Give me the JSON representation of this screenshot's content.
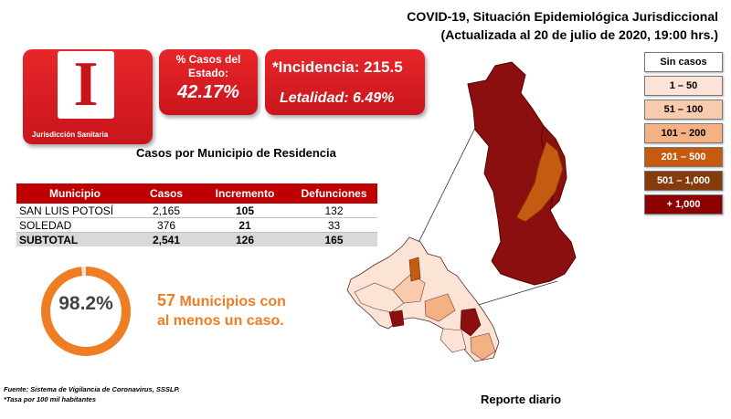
{
  "header": {
    "line1": "COVID-19, Situación Epidemiológica Jurisdiccional",
    "line2": "(Actualizada al 20 de julio de 2020, 19:00 hrs.)"
  },
  "jurisdiction": {
    "letter": "I",
    "label": "Jurisdicción Sanitaria"
  },
  "pct_card": {
    "label_line1": "% Casos del",
    "label_line2": "Estado:",
    "value": "42.17%"
  },
  "incidence_card": {
    "incidencia": "*Incidencia: 215.5",
    "letalidad": "Letalidad: 6.49%"
  },
  "table": {
    "title": "Casos por Municipio  de Residencia",
    "headers": [
      "Municipio",
      "Casos",
      "Incremento",
      "Defunciones"
    ],
    "rows": [
      [
        "SAN LUIS POTOSÍ",
        "2,165",
        "105",
        "132"
      ],
      [
        "SOLEDAD",
        "376",
        "21",
        "33"
      ]
    ],
    "subtotal": [
      "SUBTOTAL",
      "2,541",
      "126",
      "165"
    ]
  },
  "ring": {
    "value": "98.2%",
    "fraction": 0.982,
    "color": "#ee7d23"
  },
  "municipios": {
    "count": "57",
    "line1_rest": " Municipios con",
    "line2": "al menos un caso."
  },
  "legend": {
    "items": [
      {
        "label": "Sin casos",
        "bg": "#ffffff",
        "fg": "#000000"
      },
      {
        "label": "1 – 50",
        "bg": "#fbe3d6",
        "fg": "#000000"
      },
      {
        "label": "51 – 100",
        "bg": "#f8cbad",
        "fg": "#000000"
      },
      {
        "label": "101 – 200",
        "bg": "#f4b183",
        "fg": "#000000"
      },
      {
        "label": "201 – 500",
        "bg": "#c55a11",
        "fg": "#ffffff"
      },
      {
        "label": "501 – 1,000",
        "bg": "#843c0c",
        "fg": "#ffffff"
      },
      {
        "label": "+ 1,000",
        "bg": "#8b0000",
        "fg": "#ffffff"
      }
    ]
  },
  "footer": {
    "line1": "Fuente: Sistema de Vigilancia  de Coronavirus,  SSSLP.",
    "line2": "*Tasa por 100 mil habitantes"
  },
  "reporte": "Reporte diario",
  "colors": {
    "accent": "#c00000",
    "orange": "#ee7d23"
  }
}
